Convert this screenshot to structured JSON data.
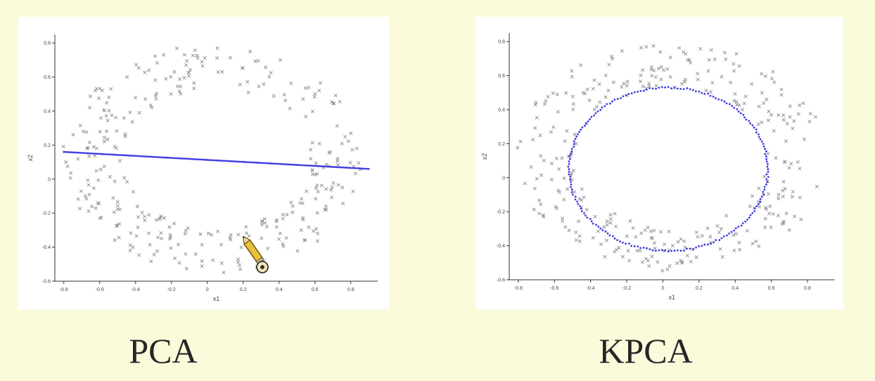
{
  "colors": {
    "background": "#fbfbdc",
    "points": "#8c8c8c",
    "projection": "#3a3ae0",
    "axis": "#333333"
  },
  "captions": {
    "left": "PCA",
    "right": "KPCA"
  },
  "chart_data": [
    {
      "type": "scatter",
      "title": "PCA",
      "xlabel": "x1",
      "ylabel": "x2",
      "xlim": [
        -0.85,
        0.95
      ],
      "ylim": [
        -0.6,
        0.85
      ],
      "xticks": [
        -0.8,
        -0.6,
        -0.4,
        -0.2,
        0,
        0.2,
        0.4,
        0.6,
        0.8
      ],
      "yticks": [
        -0.6,
        -0.4,
        -0.2,
        0,
        0.2,
        0.4,
        0.6,
        0.8
      ],
      "tick_labels_x": [
        "-0.8",
        "-0.6",
        "-0.4",
        "-0.2",
        "0",
        "0.2",
        "0.4",
        "0.6",
        "0.8"
      ],
      "tick_labels_y": [
        "-0.6",
        "-0.4",
        "-0.2",
        "0",
        "0.2",
        "0.4",
        "0.6",
        "0.8"
      ],
      "series": [
        {
          "marker": "x",
          "distribution": "noisy ring",
          "inner_radius": 0.5,
          "outer_radius": 0.82,
          "count": 320
        },
        {
          "marker": "dots",
          "shape": "line",
          "x": [
            -0.8,
            0.9
          ],
          "y": [
            0.16,
            0.06
          ]
        }
      ]
    },
    {
      "type": "scatter",
      "title": "KPCA",
      "xlabel": "x1",
      "ylabel": "x2",
      "xlim": [
        -0.85,
        0.95
      ],
      "ylim": [
        -0.6,
        0.85
      ],
      "xticks": [
        -0.8,
        -0.6,
        -0.4,
        -0.2,
        0,
        0.2,
        0.4,
        0.6,
        0.8
      ],
      "yticks": [
        -0.6,
        -0.4,
        -0.2,
        0,
        0.2,
        0.4,
        0.6,
        0.8
      ],
      "tick_labels_x": [
        "-0.8",
        "-0.6",
        "-0.4",
        "-0.2",
        "0",
        "0.2",
        "0.4",
        "0.6",
        "0.8"
      ],
      "tick_labels_y": [
        "-0.6",
        "-0.4",
        "-0.2",
        "0",
        "0.2",
        "0.4",
        "0.6",
        "0.8"
      ],
      "series": [
        {
          "marker": "x",
          "distribution": "noisy ring",
          "inner_radius": 0.5,
          "outer_radius": 0.82,
          "count": 320
        },
        {
          "marker": "dots",
          "shape": "circle",
          "center": [
            0.03,
            0.05
          ],
          "radius_x": 0.55,
          "radius_y": 0.48
        }
      ]
    }
  ]
}
